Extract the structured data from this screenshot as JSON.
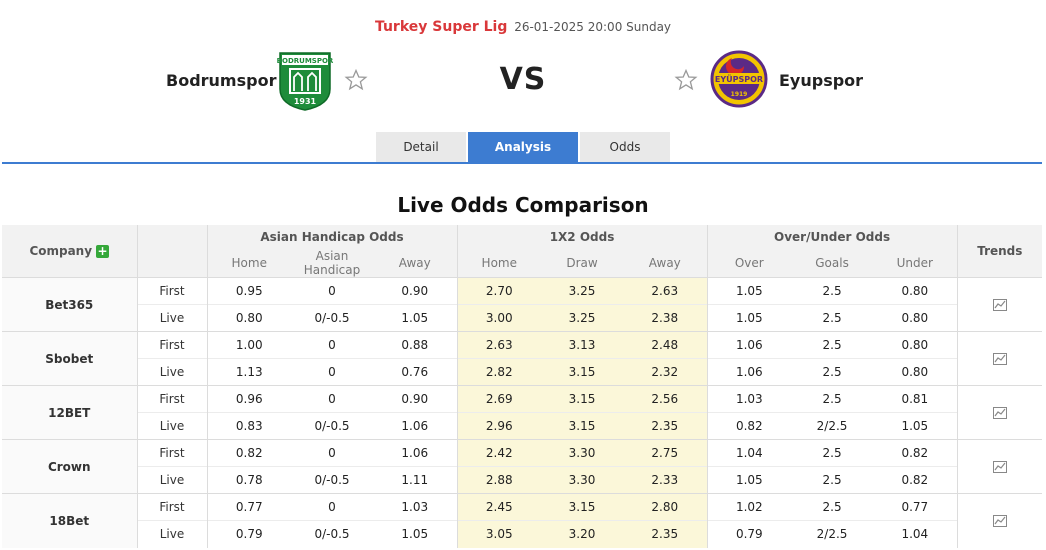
{
  "match": {
    "league": "Turkey Super Lig",
    "datetime": "26-01-2025 20:00 Sunday",
    "home_team": "Bodrumspor",
    "away_team": "Eyupspor",
    "vs": "VS",
    "home_logo_text": "BODRUMSPOR",
    "home_logo_year": "1931",
    "away_logo_text": "EYÜPSPOR",
    "away_logo_year": "1919"
  },
  "tabs": [
    {
      "label": "Detail",
      "active": false
    },
    {
      "label": "Analysis",
      "active": true
    },
    {
      "label": "Odds",
      "active": false
    }
  ],
  "section_title": "Live Odds Comparison",
  "table": {
    "company_header": "Company",
    "trends_header": "Trends",
    "groups": [
      "Asian Handicap Odds",
      "1X2 Odds",
      "Over/Under Odds"
    ],
    "subheaders": {
      "ah": [
        "Home",
        "Asian Handicap",
        "Away"
      ],
      "x12": [
        "Home",
        "Draw",
        "Away"
      ],
      "ou": [
        "Over",
        "Goals",
        "Under"
      ]
    },
    "rows": [
      {
        "company": "Bet365",
        "first": {
          "type": "First",
          "ah": [
            "0.95",
            "0",
            "0.90"
          ],
          "x12": [
            "2.70",
            "3.25",
            "2.63"
          ],
          "ou": [
            "1.05",
            "2.5",
            "0.80"
          ]
        },
        "live": {
          "type": "Live",
          "ah": [
            "0.80",
            "0/-0.5",
            "1.05"
          ],
          "x12": [
            "3.00",
            "3.25",
            "2.38"
          ],
          "ou": [
            "1.05",
            "2.5",
            "0.80"
          ]
        }
      },
      {
        "company": "Sbobet",
        "first": {
          "type": "First",
          "ah": [
            "1.00",
            "0",
            "0.88"
          ],
          "x12": [
            "2.63",
            "3.13",
            "2.48"
          ],
          "ou": [
            "1.06",
            "2.5",
            "0.80"
          ]
        },
        "live": {
          "type": "Live",
          "ah": [
            "1.13",
            "0",
            "0.76"
          ],
          "x12": [
            "2.82",
            "3.15",
            "2.32"
          ],
          "ou": [
            "1.06",
            "2.5",
            "0.80"
          ]
        }
      },
      {
        "company": "12BET",
        "first": {
          "type": "First",
          "ah": [
            "0.96",
            "0",
            "0.90"
          ],
          "x12": [
            "2.69",
            "3.15",
            "2.56"
          ],
          "ou": [
            "1.03",
            "2.5",
            "0.81"
          ]
        },
        "live": {
          "type": "Live",
          "ah": [
            "0.83",
            "0/-0.5",
            "1.06"
          ],
          "x12": [
            "2.96",
            "3.15",
            "2.35"
          ],
          "ou": [
            "0.82",
            "2/2.5",
            "1.05"
          ]
        }
      },
      {
        "company": "Crown",
        "first": {
          "type": "First",
          "ah": [
            "0.82",
            "0",
            "1.06"
          ],
          "x12": [
            "2.42",
            "3.30",
            "2.75"
          ],
          "ou": [
            "1.04",
            "2.5",
            "0.82"
          ]
        },
        "live": {
          "type": "Live",
          "ah": [
            "0.78",
            "0/-0.5",
            "1.11"
          ],
          "x12": [
            "2.88",
            "3.30",
            "2.33"
          ],
          "ou": [
            "1.05",
            "2.5",
            "0.82"
          ]
        }
      },
      {
        "company": "18Bet",
        "first": {
          "type": "First",
          "ah": [
            "0.77",
            "0",
            "1.03"
          ],
          "x12": [
            "2.45",
            "3.15",
            "2.80"
          ],
          "ou": [
            "1.02",
            "2.5",
            "0.77"
          ]
        },
        "live": {
          "type": "Live",
          "ah": [
            "0.79",
            "0/-0.5",
            "1.05"
          ],
          "x12": [
            "3.05",
            "3.20",
            "2.35"
          ],
          "ou": [
            "0.79",
            "2/2.5",
            "1.04"
          ]
        }
      }
    ]
  },
  "colors": {
    "accent": "#3d7cd1",
    "league": "#d9383a",
    "x12_bg": "#fbf7d9",
    "plus": "#35a83a"
  }
}
